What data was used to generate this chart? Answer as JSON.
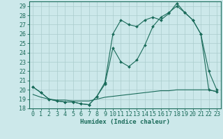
{
  "xlabel": "Humidex (Indice chaleur)",
  "bg_color": "#cce8ea",
  "line_color": "#1a6b5a",
  "ylim": [
    18,
    29.5
  ],
  "xlim": [
    -0.5,
    23.5
  ],
  "yticks": [
    18,
    19,
    20,
    21,
    22,
    23,
    24,
    25,
    26,
    27,
    28,
    29
  ],
  "xticks": [
    0,
    1,
    2,
    3,
    4,
    5,
    6,
    7,
    8,
    9,
    10,
    11,
    12,
    13,
    14,
    15,
    16,
    17,
    18,
    19,
    20,
    21,
    22,
    23
  ],
  "line1_x": [
    0,
    1,
    2,
    3,
    4,
    5,
    6,
    7,
    8,
    9,
    10,
    11,
    12,
    13,
    14,
    15,
    16,
    17,
    18,
    19,
    20,
    21,
    22,
    23
  ],
  "line1_y": [
    20.3,
    19.7,
    19.0,
    18.8,
    18.7,
    18.7,
    18.5,
    18.4,
    19.3,
    20.8,
    26.0,
    27.5,
    27.0,
    26.8,
    27.5,
    27.8,
    27.5,
    28.2,
    29.3,
    28.3,
    27.5,
    26.0,
    20.0,
    19.8
  ],
  "line2_x": [
    0,
    1,
    2,
    3,
    4,
    5,
    6,
    7,
    8,
    9,
    10,
    11,
    12,
    13,
    14,
    15,
    16,
    17,
    18,
    19,
    20,
    21,
    22,
    23
  ],
  "line2_y": [
    20.3,
    19.7,
    19.0,
    18.8,
    18.7,
    18.7,
    18.5,
    18.4,
    19.3,
    20.6,
    24.5,
    23.0,
    22.5,
    23.2,
    24.8,
    26.8,
    27.8,
    28.3,
    29.0,
    28.3,
    27.5,
    26.0,
    22.0,
    20.0
  ],
  "line3_x": [
    0,
    1,
    2,
    3,
    4,
    5,
    6,
    7,
    8,
    9,
    10,
    11,
    12,
    13,
    14,
    15,
    16,
    17,
    18,
    19,
    20,
    21,
    22,
    23
  ],
  "line3_y": [
    19.5,
    19.2,
    19.0,
    18.9,
    18.9,
    18.8,
    18.8,
    18.8,
    19.0,
    19.2,
    19.3,
    19.4,
    19.5,
    19.6,
    19.7,
    19.8,
    19.9,
    19.9,
    20.0,
    20.0,
    20.0,
    20.0,
    20.0,
    19.8
  ],
  "grid_color": "#aacccc",
  "label_fontsize": 6.5,
  "tick_fontsize": 6
}
